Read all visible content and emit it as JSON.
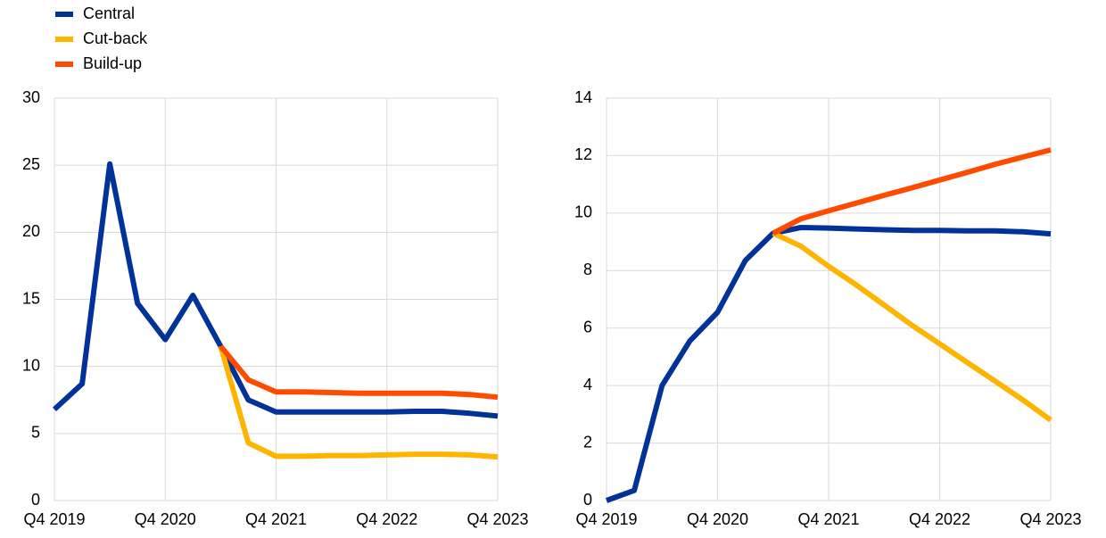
{
  "chart_data": [
    {
      "type": "line",
      "categories": [
        "Q4 2019",
        null,
        null,
        null,
        "Q4 2020",
        null,
        null,
        null,
        "Q4 2021",
        null,
        null,
        null,
        "Q4 2022",
        null,
        null,
        null,
        "Q4 2023"
      ],
      "series": [
        {
          "name": "Central",
          "color": "#003299",
          "values": [
            6.8,
            8.7,
            25.1,
            14.7,
            12.0,
            15.3,
            11.5,
            7.5,
            6.6,
            6.6,
            6.6,
            6.6,
            6.6,
            6.65,
            6.65,
            6.5,
            6.3
          ]
        },
        {
          "name": "Cut-back",
          "color": "#ffb400",
          "values": [
            null,
            null,
            null,
            null,
            null,
            null,
            11.5,
            4.3,
            3.3,
            3.3,
            3.35,
            3.35,
            3.4,
            3.45,
            3.45,
            3.4,
            3.25
          ]
        },
        {
          "name": "Build-up",
          "color": "#ff4b00",
          "values": [
            null,
            null,
            null,
            null,
            null,
            null,
            11.5,
            9.0,
            8.1,
            8.1,
            8.05,
            8.0,
            8.0,
            8.0,
            8.0,
            7.9,
            7.7
          ]
        }
      ],
      "ylim": [
        0,
        30
      ],
      "yticks": [
        0,
        5,
        10,
        15,
        20,
        25,
        30
      ],
      "grid": true
    },
    {
      "type": "line",
      "categories": [
        "Q4 2019",
        null,
        null,
        null,
        "Q4 2020",
        null,
        null,
        null,
        "Q4 2021",
        null,
        null,
        null,
        "Q4 2022",
        null,
        null,
        null,
        "Q4 2023"
      ],
      "series": [
        {
          "name": "Central",
          "color": "#003299",
          "values": [
            0,
            0.35,
            4.0,
            5.55,
            6.55,
            8.35,
            9.3,
            9.5,
            9.48,
            9.45,
            9.42,
            9.4,
            9.4,
            9.38,
            9.38,
            9.35,
            9.28
          ]
        },
        {
          "name": "Cut-back",
          "color": "#ffb400",
          "values": [
            null,
            null,
            null,
            null,
            null,
            null,
            9.3,
            8.85,
            8.15,
            7.5,
            6.8,
            6.1,
            5.45,
            4.8,
            4.15,
            3.5,
            2.8
          ]
        },
        {
          "name": "Build-up",
          "color": "#ff4b00",
          "values": [
            null,
            null,
            null,
            null,
            null,
            null,
            9.3,
            9.8,
            10.08,
            10.35,
            10.62,
            10.88,
            11.15,
            11.42,
            11.7,
            11.95,
            12.2
          ]
        }
      ],
      "ylim": [
        0,
        14
      ],
      "yticks": [
        0,
        2,
        4,
        6,
        8,
        10,
        12,
        14
      ],
      "grid": true
    }
  ]
}
